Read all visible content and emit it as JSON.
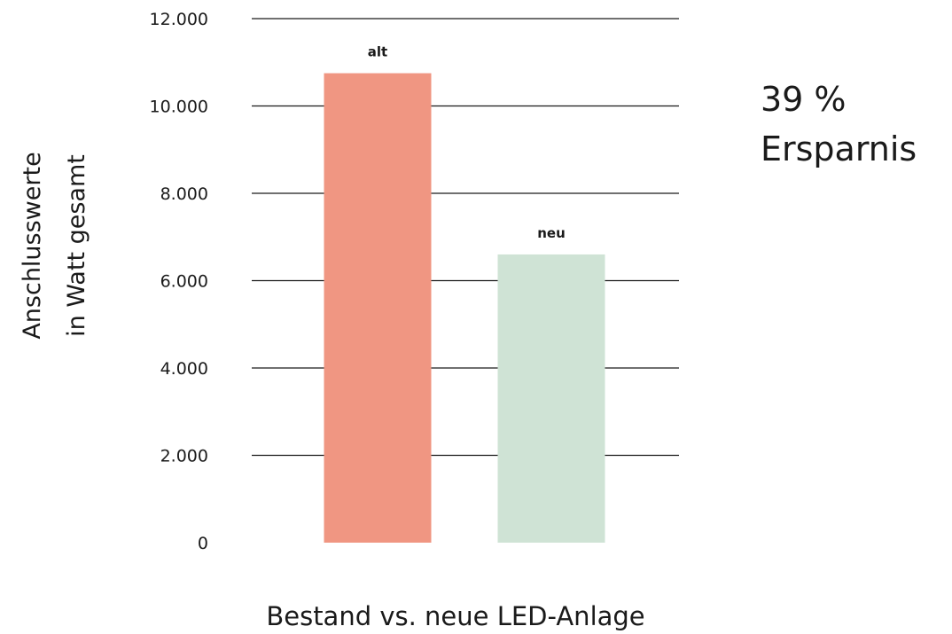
{
  "chart_data": {
    "type": "bar",
    "categories": [
      "alt",
      "neu"
    ],
    "values": [
      10750,
      6600
    ],
    "colors": [
      "#f09682",
      "#cfe3d5"
    ],
    "ylim": [
      0,
      12000
    ],
    "yticks": [
      0,
      2000,
      4000,
      6000,
      8000,
      10000,
      12000
    ],
    "ytick_labels": [
      "0",
      "2.000",
      "4.000",
      "6.000",
      "8.000",
      "10.000",
      "12.000"
    ],
    "ylabel_lines": [
      "Anschlusswerte",
      "in Watt gesamt"
    ],
    "xlabel": "Bestand vs. neue LED-Anlage",
    "grid": true
  },
  "annotation": {
    "line1": "39 %",
    "line2": "Ersparnis"
  }
}
